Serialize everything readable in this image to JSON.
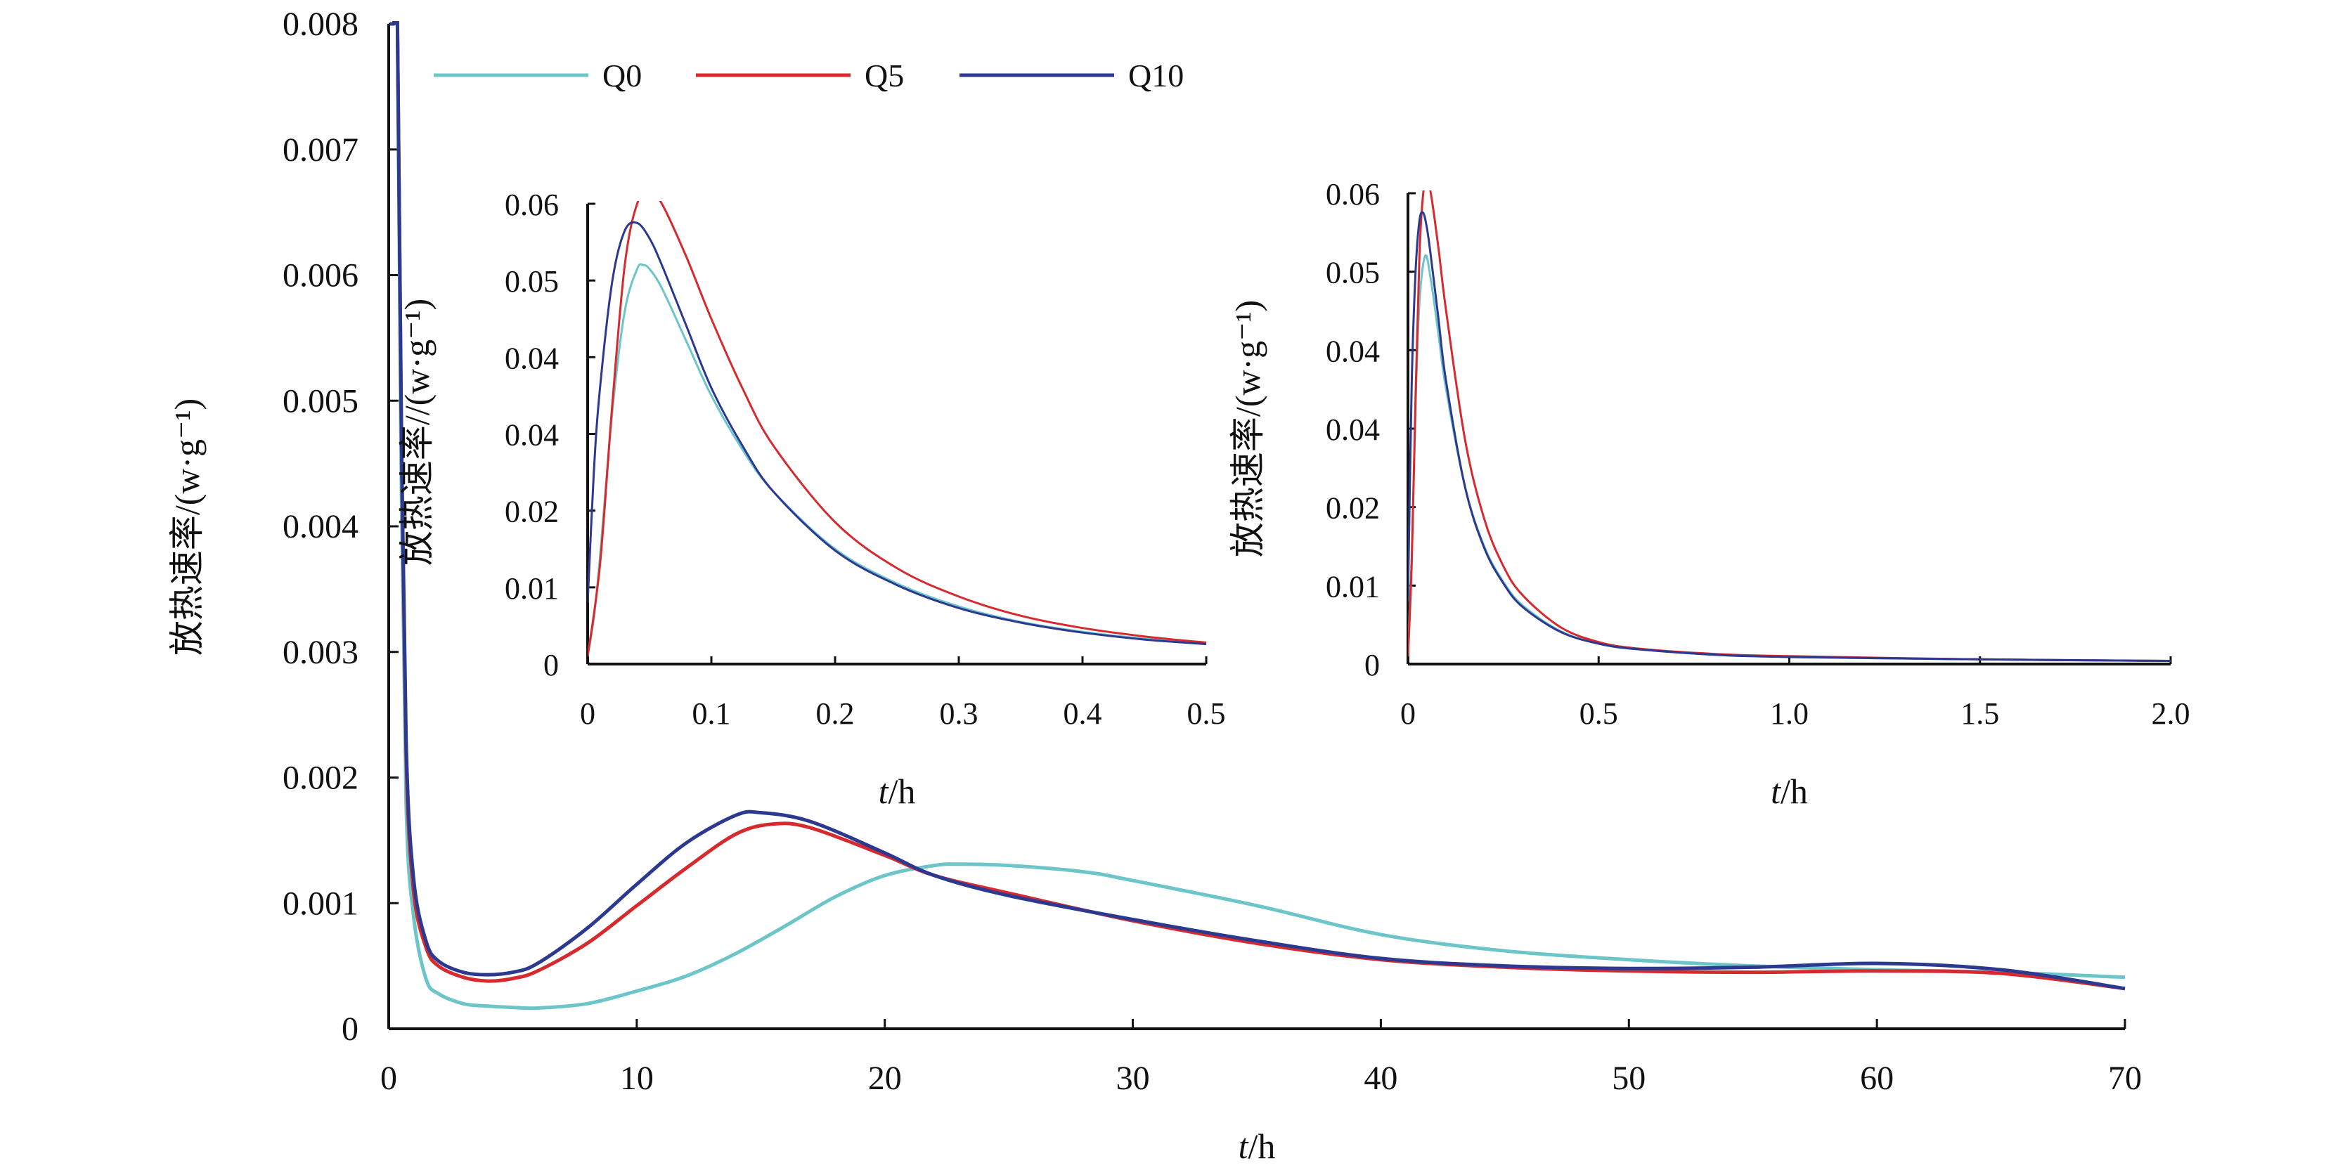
{
  "legend": [
    {
      "name": "Q0",
      "color": "#6cc5c8"
    },
    {
      "name": "Q5",
      "color": "#d62a2f"
    },
    {
      "name": "Q10",
      "color": "#2b3990"
    }
  ],
  "chart_data": [
    {
      "type": "line",
      "panel": "main",
      "xlabel": "t/h",
      "ylabel": "放热速率/(w·g⁻¹)",
      "xlim": [
        0,
        70
      ],
      "ylim": [
        0,
        0.008
      ],
      "x_ticks": [
        "0",
        "10",
        "20",
        "30",
        "40",
        "50",
        "60",
        "70"
      ],
      "y_ticks": [
        "0",
        "0.001",
        "0.002",
        "0.003",
        "0.004",
        "0.005",
        "0.006",
        "0.007",
        "0.008"
      ],
      "grid": false,
      "legend_position": "top",
      "series": [
        {
          "name": "Q0",
          "color": "#6cc5c8",
          "x": [
            0.05,
            0.2,
            0.35,
            0.5,
            0.7,
            1,
            1.5,
            2,
            3,
            4,
            5,
            6,
            8,
            10,
            12,
            14,
            16,
            18,
            20,
            22,
            23,
            25,
            28,
            30,
            35,
            40,
            45,
            50,
            55,
            60,
            65,
            70
          ],
          "y": [
            0.008,
            0.008,
            0.008,
            0.0045,
            0.0018,
            0.0009,
            0.0004,
            0.00028,
            0.0002,
            0.00018,
            0.00017,
            0.000165,
            0.0002,
            0.0003,
            0.00042,
            0.0006,
            0.00082,
            0.00105,
            0.00122,
            0.0013,
            0.00131,
            0.0013,
            0.00125,
            0.00118,
            0.00098,
            0.00075,
            0.00062,
            0.00055,
            0.0005,
            0.00047,
            0.00045,
            0.00041
          ]
        },
        {
          "name": "Q5",
          "color": "#d62a2f",
          "x": [
            0.05,
            0.2,
            0.35,
            0.5,
            0.7,
            1,
            1.5,
            2,
            3,
            4,
            5,
            6,
            8,
            10,
            12,
            14,
            15.5,
            17,
            20,
            22,
            25,
            30,
            35,
            40,
            45,
            50,
            55,
            60,
            65,
            70
          ],
          "y": [
            0.008,
            0.008,
            0.008,
            0.005,
            0.0022,
            0.0011,
            0.00065,
            0.0005,
            0.00041,
            0.00038,
            0.0004,
            0.00046,
            0.00068,
            0.00098,
            0.00128,
            0.00155,
            0.00163,
            0.0016,
            0.00138,
            0.00122,
            0.00108,
            0.00086,
            0.00068,
            0.00055,
            0.00049,
            0.00046,
            0.00045,
            0.00046,
            0.00044,
            0.00032
          ]
        },
        {
          "name": "Q10",
          "color": "#2b3990",
          "x": [
            0.05,
            0.2,
            0.35,
            0.5,
            0.7,
            1,
            1.5,
            2,
            3,
            4,
            5,
            6,
            8,
            10,
            12,
            14,
            15,
            17,
            20,
            22,
            25,
            30,
            35,
            40,
            45,
            50,
            55,
            60,
            65,
            70
          ],
          "y": [
            0.008,
            0.008,
            0.008,
            0.005,
            0.0023,
            0.0012,
            0.0007,
            0.00054,
            0.00045,
            0.00043,
            0.00045,
            0.00052,
            0.0008,
            0.00115,
            0.00148,
            0.0017,
            0.00172,
            0.00165,
            0.0014,
            0.00122,
            0.00106,
            0.00087,
            0.0007,
            0.00056,
            0.0005,
            0.00048,
            0.00049,
            0.00052,
            0.00047,
            0.00032
          ]
        }
      ]
    },
    {
      "type": "line",
      "panel": "inset-left",
      "xlabel": "t/h",
      "ylabel": "放热速率//(w·g⁻¹)",
      "xlim": [
        0,
        0.5
      ],
      "ylim": [
        0,
        0.06
      ],
      "x_ticks": [
        "0",
        "0.1",
        "0.2",
        "0.3",
        "0.4",
        "0.5"
      ],
      "y_ticks": [
        "0",
        "0.01",
        "0.02",
        "0.04",
        "0.04",
        "0.05",
        "0.06"
      ],
      "series": [
        {
          "name": "Q0",
          "color": "#6cc5c8",
          "x": [
            0,
            0.005,
            0.01,
            0.02,
            0.03,
            0.04,
            0.045,
            0.05,
            0.06,
            0.08,
            0.1,
            0.125,
            0.15,
            0.2,
            0.25,
            0.3,
            0.35,
            0.4,
            0.45,
            0.5
          ],
          "y": [
            0.001,
            0.006,
            0.014,
            0.033,
            0.046,
            0.0515,
            0.052,
            0.0515,
            0.049,
            0.042,
            0.035,
            0.028,
            0.0225,
            0.015,
            0.0105,
            0.0075,
            0.0055,
            0.0042,
            0.0033,
            0.0026
          ]
        },
        {
          "name": "Q5",
          "color": "#d62a2f",
          "x": [
            0,
            0.01,
            0.02,
            0.03,
            0.04,
            0.05,
            0.06,
            0.08,
            0.1,
            0.125,
            0.15,
            0.2,
            0.25,
            0.3,
            0.35,
            0.4,
            0.45,
            0.5
          ],
          "y": [
            0.001,
            0.013,
            0.034,
            0.052,
            0.06,
            0.0615,
            0.06,
            0.053,
            0.045,
            0.036,
            0.0285,
            0.0185,
            0.0125,
            0.0088,
            0.0063,
            0.0047,
            0.0036,
            0.0028
          ]
        },
        {
          "name": "Q10",
          "color": "#2b3990",
          "x": [
            0,
            0.005,
            0.01,
            0.02,
            0.03,
            0.04,
            0.05,
            0.06,
            0.08,
            0.1,
            0.125,
            0.15,
            0.2,
            0.25,
            0.3,
            0.35,
            0.4,
            0.45,
            0.5
          ],
          "y": [
            0.008,
            0.025,
            0.036,
            0.05,
            0.0565,
            0.0575,
            0.0555,
            0.052,
            0.044,
            0.036,
            0.0285,
            0.0225,
            0.0148,
            0.0103,
            0.0073,
            0.0054,
            0.0041,
            0.0032,
            0.0026
          ]
        }
      ]
    },
    {
      "type": "line",
      "panel": "inset-right",
      "xlabel": "t/h",
      "ylabel": "放热速率/(w·g⁻¹)",
      "xlim": [
        0,
        2.0
      ],
      "ylim": [
        0,
        0.06
      ],
      "x_ticks": [
        "0",
        "0.5",
        "1.0",
        "1.5",
        "2.0"
      ],
      "y_ticks": [
        "0",
        "0.01",
        "0.02",
        "0.04",
        "0.04",
        "0.05",
        "0.06"
      ],
      "series": [
        {
          "name": "Q0",
          "color": "#6cc5c8",
          "x": [
            0,
            0.01,
            0.02,
            0.03,
            0.045,
            0.06,
            0.08,
            0.1,
            0.15,
            0.2,
            0.25,
            0.3,
            0.4,
            0.5,
            0.6,
            0.8,
            1.0,
            1.5,
            2.0
          ],
          "y": [
            0.001,
            0.014,
            0.033,
            0.046,
            0.052,
            0.049,
            0.042,
            0.035,
            0.0225,
            0.015,
            0.0105,
            0.0075,
            0.0042,
            0.0026,
            0.0019,
            0.0012,
            0.0009,
            0.0006,
            0.0004
          ]
        },
        {
          "name": "Q5",
          "color": "#d62a2f",
          "x": [
            0,
            0.01,
            0.02,
            0.03,
            0.04,
            0.05,
            0.06,
            0.08,
            0.1,
            0.15,
            0.2,
            0.25,
            0.3,
            0.4,
            0.5,
            0.6,
            0.8,
            1.0,
            1.5,
            2.0
          ],
          "y": [
            0.001,
            0.013,
            0.034,
            0.052,
            0.06,
            0.0615,
            0.06,
            0.053,
            0.045,
            0.0285,
            0.0185,
            0.0125,
            0.0088,
            0.0047,
            0.0028,
            0.002,
            0.0013,
            0.001,
            0.0006,
            0.0004
          ]
        },
        {
          "name": "Q10",
          "color": "#2b3990",
          "x": [
            0,
            0.01,
            0.02,
            0.03,
            0.04,
            0.05,
            0.06,
            0.08,
            0.1,
            0.15,
            0.2,
            0.25,
            0.3,
            0.4,
            0.5,
            0.6,
            0.8,
            1.0,
            1.5,
            2.0
          ],
          "y": [
            0.008,
            0.036,
            0.05,
            0.0565,
            0.0575,
            0.0555,
            0.052,
            0.044,
            0.036,
            0.0225,
            0.0148,
            0.0103,
            0.0073,
            0.0041,
            0.0026,
            0.0019,
            0.0012,
            0.0009,
            0.0006,
            0.0004
          ]
        }
      ]
    }
  ]
}
